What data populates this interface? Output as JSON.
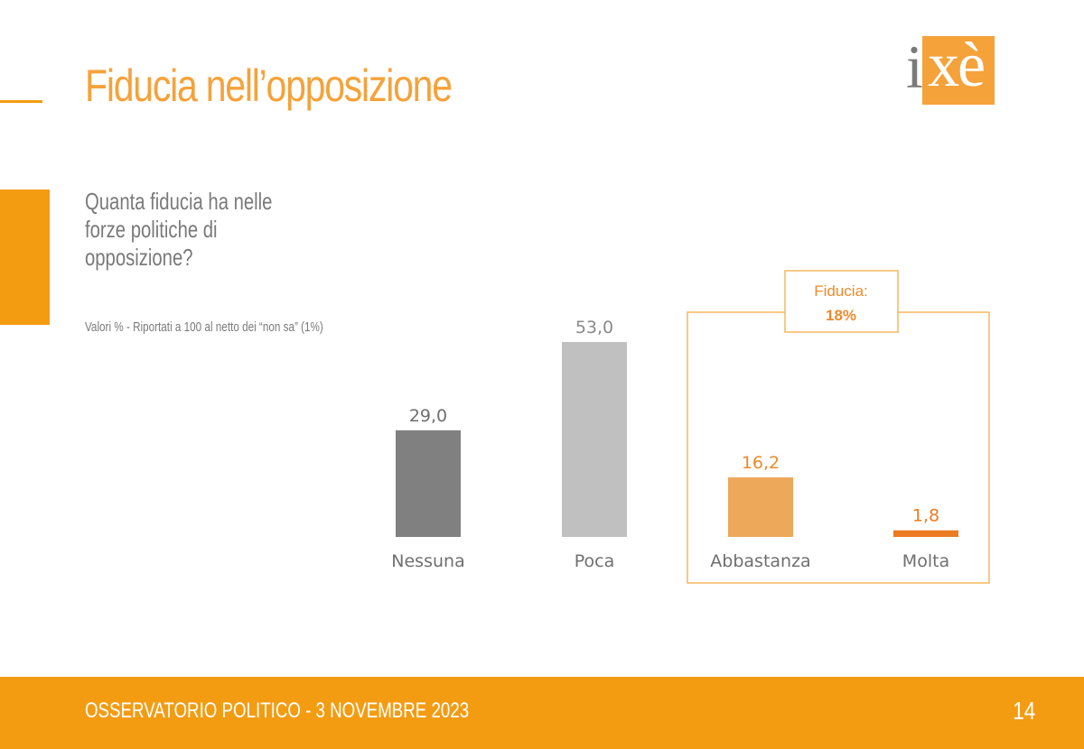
{
  "slide": {
    "title": "Fiducia nell’opposizione",
    "question": "Quanta fiducia ha nelle forze politiche di opposizione?",
    "note": "Valori % - Riportati a 100 al netto dei “non sa” (1%)"
  },
  "logo": {
    "i": "i",
    "xe": "xè"
  },
  "footer": {
    "text": "OSSERVATORIO POLITICO - 3 NOVEMBRE 2023",
    "page": "14"
  },
  "colors": {
    "accent": "#f39c12",
    "bar_nessuna": "#808080",
    "bar_poca": "#c0c0c0",
    "bar_abbastanza": "#eda85a",
    "bar_molta": "#ec7b23",
    "highlight_box": "#f5b75e"
  },
  "chart_data": {
    "type": "bar",
    "categories": [
      "Nessuna",
      "Poca",
      "Abbastanza",
      "Molta"
    ],
    "values": [
      29.0,
      53.0,
      16.2,
      1.8
    ],
    "data_labels": [
      "29,0",
      "53,0",
      "16,2",
      "1,8"
    ],
    "title": "",
    "xlabel": "",
    "ylabel": "",
    "ylim": [
      0,
      53
    ],
    "grid": false,
    "annotation": {
      "label": "Fiducia:",
      "value": "18%",
      "groups": [
        "Abbastanza",
        "Molta"
      ]
    }
  }
}
